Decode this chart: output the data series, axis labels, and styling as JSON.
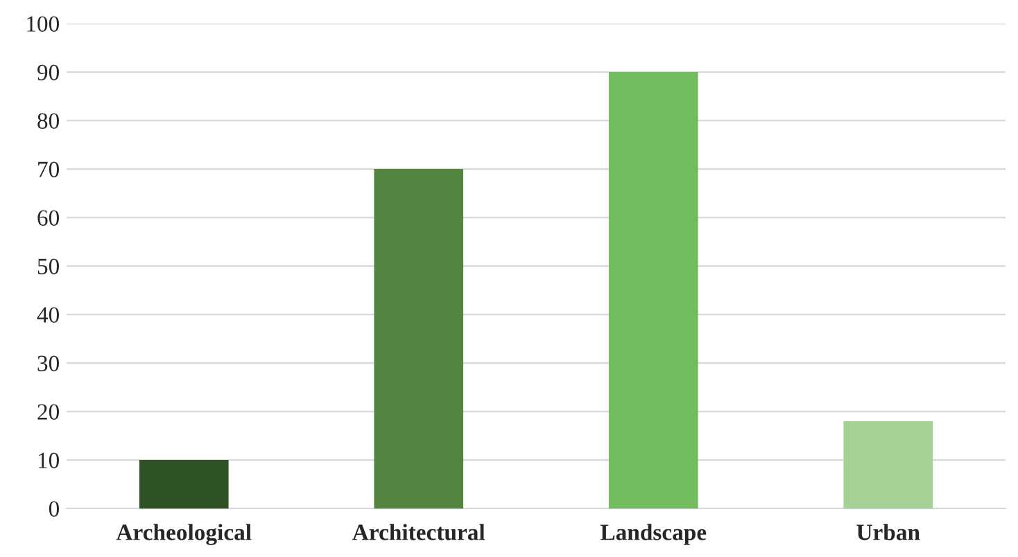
{
  "chart_data": {
    "type": "bar",
    "categories": [
      "Archeological",
      "Architectural",
      "Landscape",
      "Urban"
    ],
    "values": [
      10,
      70,
      90,
      18
    ],
    "colors": [
      "#2e5226",
      "#548540",
      "#70bc5f",
      "#a3d294"
    ],
    "ylim": [
      0,
      100
    ],
    "yticks": [
      0,
      10,
      20,
      30,
      40,
      50,
      60,
      70,
      80,
      90,
      100
    ],
    "grid": "y",
    "legend": false
  }
}
